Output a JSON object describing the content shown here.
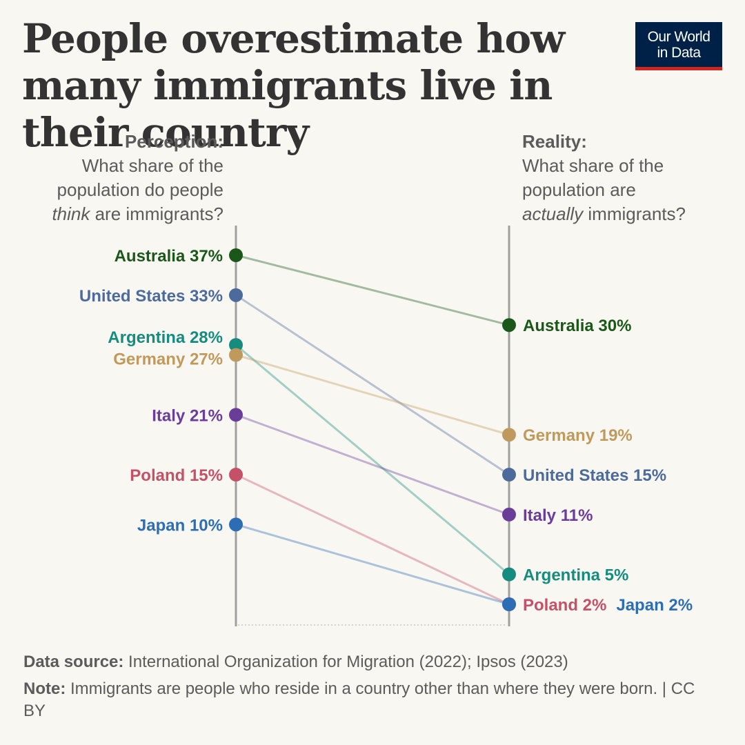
{
  "title": "People overestimate how many immigrants live in their country",
  "logo": {
    "line1": "Our World",
    "line2": "in Data"
  },
  "perception": {
    "heading": "Perception:",
    "line1": "What share of the",
    "line2": "population do people",
    "emph": "think",
    "line3_rest": " are immigrants?"
  },
  "reality": {
    "heading": "Reality:",
    "line1": "What share of the",
    "line2": "population are",
    "emph": "actually",
    "line3_rest": " immigrants?"
  },
  "chart_data": {
    "type": "slope",
    "left_axis": "Perception",
    "right_axis": "Reality",
    "unit": "%",
    "series": [
      {
        "name": "Australia",
        "perception": 37,
        "reality": 30,
        "color": "#1a5718"
      },
      {
        "name": "United States",
        "perception": 33,
        "reality": 15,
        "color": "#4c6a9c"
      },
      {
        "name": "Argentina",
        "perception": 28,
        "reality": 5,
        "color": "#158c7e"
      },
      {
        "name": "Germany",
        "perception": 27,
        "reality": 19,
        "color": "#c09a5d"
      },
      {
        "name": "Italy",
        "perception": 21,
        "reality": 11,
        "color": "#6a3d98"
      },
      {
        "name": "Poland",
        "perception": 15,
        "reality": 2,
        "color": "#c55168"
      },
      {
        "name": "Japan",
        "perception": 10,
        "reality": 2,
        "color": "#2c6db5"
      }
    ]
  },
  "footer": {
    "source_label": "Data source:",
    "source_text": " International Organization for Migration (2022); Ipsos (2023)",
    "note_label": "Note:",
    "note_text": " Immigrants are people who reside in a country other than where they were born. | CC BY"
  }
}
